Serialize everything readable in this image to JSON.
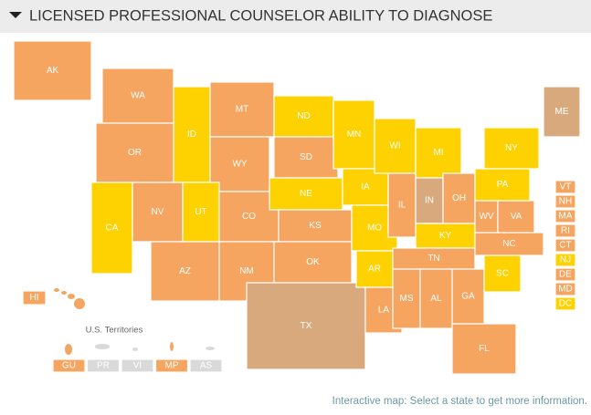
{
  "header": {
    "title": "LICENSED PROFESSIONAL COUNSELOR ABILITY TO DIAGNOSE"
  },
  "map": {
    "states": [
      {
        "label": "AK",
        "color": "#f6a560"
      },
      {
        "label": "WA",
        "color": "#f6a560"
      },
      {
        "label": "OR",
        "color": "#f6a560"
      },
      {
        "label": "CA",
        "color": "#fed100"
      },
      {
        "label": "NV",
        "color": "#f6a560"
      },
      {
        "label": "ID",
        "color": "#fed100"
      },
      {
        "label": "MT",
        "color": "#f6a560"
      },
      {
        "label": "WY",
        "color": "#f6a560"
      },
      {
        "label": "UT",
        "color": "#fed100"
      },
      {
        "label": "CO",
        "color": "#f6a560"
      },
      {
        "label": "AZ",
        "color": "#f6a560"
      },
      {
        "label": "NM",
        "color": "#f6a560"
      },
      {
        "label": "ND",
        "color": "#fed100"
      },
      {
        "label": "SD",
        "color": "#f6a560"
      },
      {
        "label": "NE",
        "color": "#fed100"
      },
      {
        "label": "KS",
        "color": "#f6a560"
      },
      {
        "label": "OK",
        "color": "#f6a560"
      },
      {
        "label": "TX",
        "color": "#d9a97e"
      },
      {
        "label": "MN",
        "color": "#fed100"
      },
      {
        "label": "IA",
        "color": "#fed100"
      },
      {
        "label": "MO",
        "color": "#fed100"
      },
      {
        "label": "AR",
        "color": "#fed100"
      },
      {
        "label": "LA",
        "color": "#f6a560"
      },
      {
        "label": "WI",
        "color": "#fed100"
      },
      {
        "label": "IL",
        "color": "#f6a560"
      },
      {
        "label": "MI",
        "color": "#fed100"
      },
      {
        "label": "IN",
        "color": "#d9a97e"
      },
      {
        "label": "OH",
        "color": "#f6a560"
      },
      {
        "label": "KY",
        "color": "#fed100"
      },
      {
        "label": "TN",
        "color": "#f6a560"
      },
      {
        "label": "MS",
        "color": "#f6a560"
      },
      {
        "label": "AL",
        "color": "#f6a560"
      },
      {
        "label": "GA",
        "color": "#f6a560"
      },
      {
        "label": "FL",
        "color": "#f6a560"
      },
      {
        "label": "SC",
        "color": "#fed100"
      },
      {
        "label": "NC",
        "color": "#f6a560"
      },
      {
        "label": "WV",
        "color": "#f6a560"
      },
      {
        "label": "VA",
        "color": "#f6a560"
      },
      {
        "label": "PA",
        "color": "#fed100"
      },
      {
        "label": "NY",
        "color": "#fed100"
      },
      {
        "label": "ME",
        "color": "#d9a97e"
      },
      {
        "label": "VT",
        "color": "#f6a560"
      },
      {
        "label": "NH",
        "color": "#f6a560"
      },
      {
        "label": "MA",
        "color": "#f6a560"
      },
      {
        "label": "RI",
        "color": "#f6a560"
      },
      {
        "label": "CT",
        "color": "#f6a560"
      },
      {
        "label": "NJ",
        "color": "#fed100"
      },
      {
        "label": "DE",
        "color": "#f6a560"
      },
      {
        "label": "MD",
        "color": "#f6a560"
      },
      {
        "label": "DC",
        "color": "#fed100"
      },
      {
        "label": "HI",
        "color": "#f6a560"
      }
    ],
    "territories_label": "U.S. Territories",
    "territories": [
      {
        "label": "GU",
        "color": "#f6a560"
      },
      {
        "label": "PR",
        "color": "#d9d9d9"
      },
      {
        "label": "VI",
        "color": "#d9d9d9"
      },
      {
        "label": "MP",
        "color": "#f6a560"
      },
      {
        "label": "AS",
        "color": "#d9d9d9"
      }
    ]
  },
  "footer": {
    "note": "Interactive map: Select a state to get more information."
  }
}
